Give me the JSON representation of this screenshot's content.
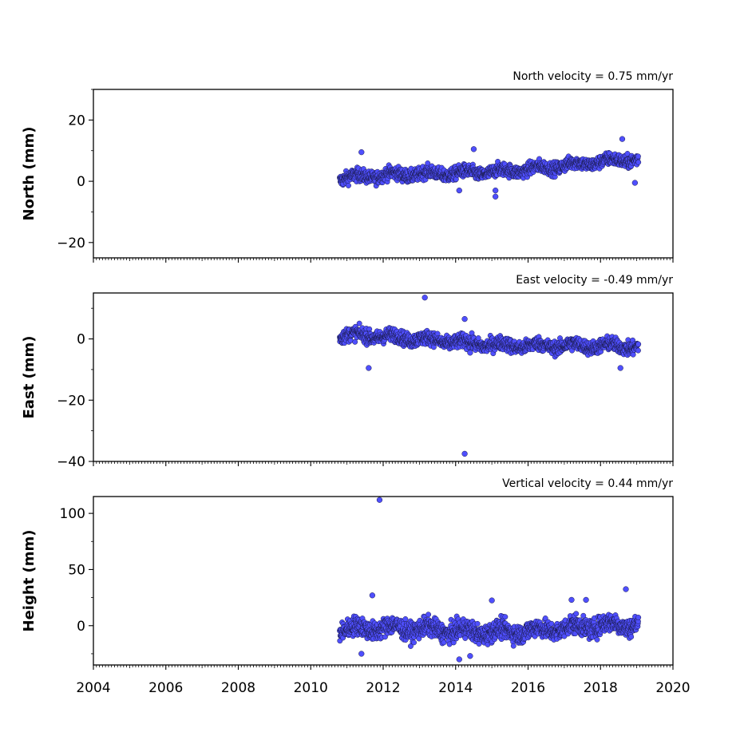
{
  "chart_data": [
    {
      "type": "scatter",
      "title": "North velocity = 0.75 mm/yr",
      "ylabel": "North (mm)",
      "xlim": [
        2004,
        2020
      ],
      "ylim": [
        -25,
        30
      ],
      "yticks": [
        -20,
        0,
        20
      ],
      "yticklabels": [
        "−20",
        "0",
        "20"
      ],
      "xticks": [
        2004,
        2006,
        2008,
        2010,
        2012,
        2014,
        2016,
        2018,
        2020
      ],
      "show_xticklabels": false,
      "grid": false,
      "marker_color": "#4f4fff",
      "series": [
        {
          "trend": {
            "x0": 2010.8,
            "y0": 0.5,
            "slope": 0.75
          },
          "x_range": [
            2010.8,
            2019.05
          ],
          "scatter_amplitude": 1.5,
          "outliers": [
            [
              2011.4,
              9.5
            ],
            [
              2014.5,
              10.5
            ],
            [
              2014.1,
              -3.0
            ],
            [
              2015.1,
              -5.0
            ],
            [
              2015.1,
              -3.0
            ],
            [
              2018.6,
              13.8
            ],
            [
              2018.95,
              -0.5
            ]
          ]
        }
      ]
    },
    {
      "type": "scatter",
      "title": "East velocity = -0.49 mm/yr",
      "ylabel": "East (mm)",
      "xlim": [
        2004,
        2020
      ],
      "ylim": [
        -40,
        15
      ],
      "yticks": [
        -40,
        -20,
        0
      ],
      "yticklabels": [
        "−40",
        "−20",
        "0"
      ],
      "xticks": [
        2004,
        2006,
        2008,
        2010,
        2012,
        2014,
        2016,
        2018,
        2020
      ],
      "show_xticklabels": false,
      "grid": false,
      "marker_color": "#4f4fff",
      "series": [
        {
          "trend": {
            "x0": 2010.8,
            "y0": 0.8,
            "slope": -0.49
          },
          "x_range": [
            2010.8,
            2019.05
          ],
          "scatter_amplitude": 1.6,
          "outliers": [
            [
              2013.15,
              13.5
            ],
            [
              2014.25,
              -37.5
            ],
            [
              2011.6,
              -9.5
            ],
            [
              2018.55,
              -9.5
            ],
            [
              2014.25,
              6.5
            ],
            [
              2014.4,
              -4.5
            ]
          ]
        }
      ]
    },
    {
      "type": "scatter",
      "title": "Vertical velocity = 0.44 mm/yr",
      "ylabel": "Height (mm)",
      "xlim": [
        2004,
        2020
      ],
      "ylim": [
        -35,
        115
      ],
      "yticks": [
        0,
        50,
        100
      ],
      "yticklabels": [
        "0",
        "50",
        "100"
      ],
      "xticks": [
        2004,
        2006,
        2008,
        2010,
        2012,
        2014,
        2016,
        2018,
        2020
      ],
      "xticklabels": [
        "2004",
        "2006",
        "2008",
        "2010",
        "2012",
        "2014",
        "2016",
        "2018",
        "2020"
      ],
      "show_xticklabels": true,
      "grid": false,
      "marker_color": "#4f4fff",
      "series": [
        {
          "trend": {
            "x0": 2010.8,
            "y0": -5.0,
            "slope": 0.44
          },
          "x_range": [
            2010.8,
            2019.05
          ],
          "scatter_amplitude": 6.0,
          "outliers": [
            [
              2011.9,
              112.0
            ],
            [
              2011.7,
              27.0
            ],
            [
              2014.1,
              -30.0
            ],
            [
              2015.0,
              22.5
            ],
            [
              2017.2,
              23.0
            ],
            [
              2017.6,
              23.0
            ],
            [
              2018.7,
              32.5
            ],
            [
              2011.4,
              -25.0
            ],
            [
              2014.4,
              -27.0
            ]
          ]
        }
      ]
    }
  ]
}
